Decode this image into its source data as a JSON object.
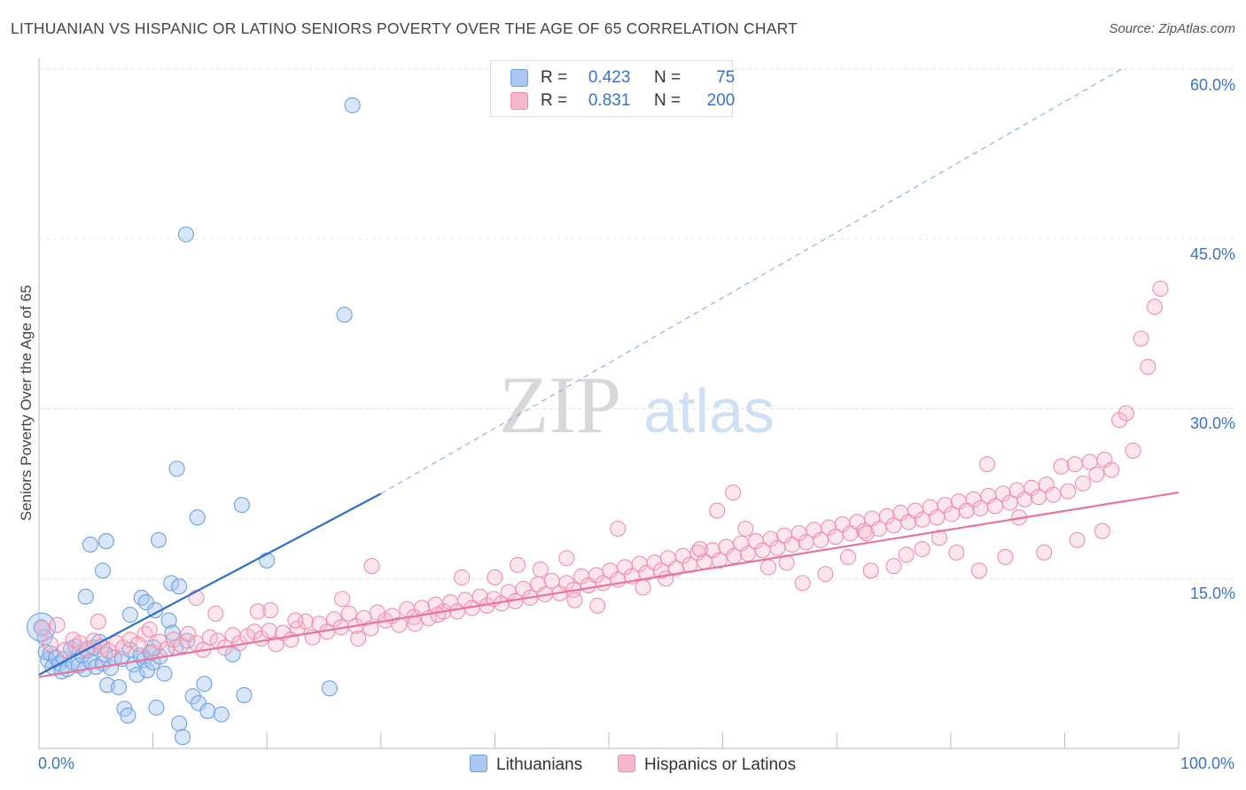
{
  "title": "LITHUANIAN VS HISPANIC OR LATINO SENIORS POVERTY OVER THE AGE OF 65 CORRELATION CHART",
  "source": "Source: ZipAtlas.com",
  "watermark": {
    "zip": "ZIP",
    "atlas": "atlas"
  },
  "legend": {
    "r_label": "R =",
    "n_label": "N =",
    "rows": [
      {
        "r": "0.423",
        "n": "75",
        "color": "#aac8ef"
      },
      {
        "r": "0.831",
        "n": "200",
        "color": "#f5b8cb"
      }
    ]
  },
  "bottom_legend": [
    {
      "label": "Lithuanians",
      "color": "#aac8ef"
    },
    {
      "label": "Hispanics or Latinos",
      "color": "#f5b8cb"
    }
  ],
  "chart_data": {
    "type": "scatter",
    "title": "LITHUANIAN VS HISPANIC OR LATINO SENIORS POVERTY OVER THE AGE OF 65 CORRELATION CHART",
    "xlabel": "",
    "ylabel": "Seniors Poverty Over the Age of 65",
    "xlim": [
      0,
      100
    ],
    "ylim": [
      0,
      60
    ],
    "x_tick_labels": [
      "0.0%",
      "100.0%"
    ],
    "y_tick_labels": [
      "15.0%",
      "30.0%",
      "45.0%",
      "60.0%"
    ],
    "y_ticks": [
      15,
      30,
      45,
      60
    ],
    "grid": true,
    "legend_position": "top-center",
    "series": [
      {
        "name": "Lithuanians",
        "color": "#6fa0df",
        "r": 0.423,
        "n": 75,
        "trend": {
          "x": [
            0,
            30
          ],
          "y": [
            6.5,
            22.5
          ],
          "extended_to": [
            95,
            60
          ]
        },
        "points": [
          [
            0.2,
            10.7
          ],
          [
            0.5,
            9.8
          ],
          [
            0.6,
            8.5
          ],
          [
            0.8,
            7.8
          ],
          [
            1.0,
            8.4
          ],
          [
            1.2,
            7.2
          ],
          [
            1.5,
            8.0
          ],
          [
            1.8,
            7.5
          ],
          [
            2.0,
            6.8
          ],
          [
            2.2,
            7.9
          ],
          [
            2.5,
            7.0
          ],
          [
            2.8,
            8.8
          ],
          [
            3.0,
            7.6
          ],
          [
            3.2,
            9.0
          ],
          [
            3.5,
            7.3
          ],
          [
            3.8,
            8.2
          ],
          [
            4.0,
            7.0
          ],
          [
            4.2,
            8.6
          ],
          [
            4.5,
            7.7
          ],
          [
            4.8,
            8.9
          ],
          [
            5.0,
            7.2
          ],
          [
            5.3,
            9.4
          ],
          [
            5.6,
            7.5
          ],
          [
            5.8,
            8.3
          ],
          [
            6.0,
            5.6
          ],
          [
            6.3,
            7.1
          ],
          [
            6.6,
            8.0
          ],
          [
            7.0,
            5.4
          ],
          [
            7.3,
            7.9
          ],
          [
            7.5,
            3.5
          ],
          [
            7.8,
            2.9
          ],
          [
            8.0,
            8.7
          ],
          [
            8.3,
            7.4
          ],
          [
            8.6,
            6.5
          ],
          [
            8.9,
            8.2
          ],
          [
            9.2,
            7.8
          ],
          [
            9.5,
            6.9
          ],
          [
            9.8,
            8.4
          ],
          [
            10.0,
            7.6
          ],
          [
            10.3,
            3.6
          ],
          [
            10.6,
            8.1
          ],
          [
            11.0,
            6.6
          ],
          [
            11.4,
            11.3
          ],
          [
            11.7,
            10.2
          ],
          [
            12.0,
            8.9
          ],
          [
            12.3,
            2.2
          ],
          [
            12.6,
            1.0
          ],
          [
            13.0,
            9.5
          ],
          [
            13.5,
            4.6
          ],
          [
            14.0,
            4.0
          ],
          [
            14.5,
            5.7
          ],
          [
            14.8,
            3.3
          ],
          [
            16.0,
            3.0
          ],
          [
            17.0,
            8.3
          ],
          [
            18.0,
            4.7
          ],
          [
            20.0,
            16.6
          ],
          [
            25.5,
            5.3
          ],
          [
            4.1,
            13.4
          ],
          [
            4.5,
            18.0
          ],
          [
            5.6,
            15.7
          ],
          [
            5.9,
            18.3
          ],
          [
            8.0,
            11.8
          ],
          [
            9.0,
            13.3
          ],
          [
            9.4,
            12.9
          ],
          [
            10.2,
            12.2
          ],
          [
            10.5,
            18.4
          ],
          [
            11.6,
            14.6
          ],
          [
            12.1,
            24.7
          ],
          [
            12.3,
            14.3
          ],
          [
            13.9,
            20.4
          ],
          [
            17.8,
            21.5
          ],
          [
            26.8,
            38.3
          ],
          [
            27.5,
            56.8
          ],
          [
            12.9,
            45.4
          ],
          [
            10.1,
            8.9
          ]
        ]
      },
      {
        "name": "Hispanics or Latinos",
        "color": "#ee8fae",
        "r": 0.831,
        "n": 200,
        "trend": {
          "x": [
            0,
            100
          ],
          "y": [
            6.3,
            22.6
          ]
        },
        "points": [
          [
            0.3,
            10.6
          ],
          [
            1.0,
            9.2
          ],
          [
            1.6,
            10.9
          ],
          [
            2.3,
            8.7
          ],
          [
            3.0,
            9.6
          ],
          [
            3.6,
            9.3
          ],
          [
            4.2,
            8.8
          ],
          [
            4.8,
            9.5
          ],
          [
            5.5,
            9.0
          ],
          [
            6.1,
            8.6
          ],
          [
            6.8,
            9.3
          ],
          [
            7.4,
            8.9
          ],
          [
            8.0,
            9.6
          ],
          [
            8.7,
            9.2
          ],
          [
            9.3,
            10.1
          ],
          [
            9.9,
            8.5
          ],
          [
            10.6,
            9.4
          ],
          [
            11.2,
            8.8
          ],
          [
            11.8,
            9.6
          ],
          [
            12.5,
            9.1
          ],
          [
            13.1,
            10.1
          ],
          [
            13.8,
            9.3
          ],
          [
            14.4,
            8.7
          ],
          [
            15.0,
            9.8
          ],
          [
            15.7,
            9.5
          ],
          [
            16.3,
            8.9
          ],
          [
            17.0,
            10.0
          ],
          [
            17.6,
            9.3
          ],
          [
            18.3,
            9.9
          ],
          [
            18.9,
            10.3
          ],
          [
            19.5,
            9.7
          ],
          [
            20.2,
            10.4
          ],
          [
            20.8,
            9.2
          ],
          [
            21.4,
            10.2
          ],
          [
            22.1,
            9.6
          ],
          [
            22.7,
            10.6
          ],
          [
            23.4,
            11.2
          ],
          [
            24.0,
            9.8
          ],
          [
            24.6,
            11.0
          ],
          [
            25.3,
            10.3
          ],
          [
            25.9,
            11.4
          ],
          [
            26.5,
            10.7
          ],
          [
            27.2,
            11.9
          ],
          [
            27.8,
            10.8
          ],
          [
            28.5,
            11.5
          ],
          [
            29.1,
            10.6
          ],
          [
            29.7,
            12.0
          ],
          [
            30.4,
            11.3
          ],
          [
            31.0,
            11.7
          ],
          [
            31.6,
            10.9
          ],
          [
            32.3,
            12.3
          ],
          [
            32.9,
            11.6
          ],
          [
            33.6,
            12.4
          ],
          [
            34.2,
            11.5
          ],
          [
            34.8,
            12.7
          ],
          [
            35.5,
            12.1
          ],
          [
            36.1,
            12.9
          ],
          [
            36.7,
            12.1
          ],
          [
            37.4,
            13.1
          ],
          [
            38.0,
            12.4
          ],
          [
            38.7,
            13.4
          ],
          [
            39.3,
            12.6
          ],
          [
            39.9,
            13.2
          ],
          [
            40.6,
            12.8
          ],
          [
            41.2,
            13.8
          ],
          [
            41.8,
            13.0
          ],
          [
            42.5,
            14.1
          ],
          [
            43.1,
            13.3
          ],
          [
            43.8,
            14.5
          ],
          [
            44.4,
            13.6
          ],
          [
            45.0,
            14.8
          ],
          [
            45.7,
            13.7
          ],
          [
            46.3,
            14.6
          ],
          [
            46.9,
            14.0
          ],
          [
            47.6,
            15.2
          ],
          [
            48.2,
            14.4
          ],
          [
            48.9,
            15.3
          ],
          [
            49.5,
            14.6
          ],
          [
            50.1,
            15.7
          ],
          [
            50.8,
            14.9
          ],
          [
            51.4,
            16.0
          ],
          [
            52.0,
            15.2
          ],
          [
            52.7,
            16.3
          ],
          [
            53.3,
            15.5
          ],
          [
            54.0,
            16.4
          ],
          [
            54.6,
            15.7
          ],
          [
            55.2,
            16.8
          ],
          [
            55.9,
            15.9
          ],
          [
            56.5,
            17.0
          ],
          [
            57.1,
            16.2
          ],
          [
            57.8,
            17.3
          ],
          [
            58.4,
            16.5
          ],
          [
            59.1,
            17.5
          ],
          [
            59.7,
            16.6
          ],
          [
            60.3,
            17.8
          ],
          [
            61.0,
            17.0
          ],
          [
            61.6,
            18.1
          ],
          [
            62.2,
            17.2
          ],
          [
            62.9,
            18.3
          ],
          [
            63.5,
            17.5
          ],
          [
            64.2,
            18.5
          ],
          [
            64.8,
            17.7
          ],
          [
            65.4,
            18.8
          ],
          [
            66.1,
            18.0
          ],
          [
            66.7,
            19.0
          ],
          [
            67.3,
            18.2
          ],
          [
            68.0,
            19.3
          ],
          [
            68.6,
            18.4
          ],
          [
            69.3,
            19.5
          ],
          [
            69.9,
            18.7
          ],
          [
            70.5,
            19.8
          ],
          [
            71.2,
            19.0
          ],
          [
            71.8,
            20.0
          ],
          [
            72.4,
            19.2
          ],
          [
            73.1,
            20.3
          ],
          [
            73.7,
            19.4
          ],
          [
            74.4,
            20.5
          ],
          [
            75.0,
            19.7
          ],
          [
            75.6,
            20.8
          ],
          [
            76.3,
            20.0
          ],
          [
            76.9,
            21.0
          ],
          [
            77.5,
            20.2
          ],
          [
            78.2,
            21.3
          ],
          [
            78.8,
            20.4
          ],
          [
            79.5,
            21.5
          ],
          [
            80.1,
            20.7
          ],
          [
            80.7,
            21.8
          ],
          [
            81.4,
            21.0
          ],
          [
            82.0,
            22.0
          ],
          [
            82.6,
            21.2
          ],
          [
            83.3,
            22.3
          ],
          [
            83.9,
            21.4
          ],
          [
            84.6,
            22.5
          ],
          [
            85.2,
            21.7
          ],
          [
            85.8,
            22.8
          ],
          [
            86.5,
            22.0
          ],
          [
            87.1,
            23.0
          ],
          [
            87.7,
            22.2
          ],
          [
            88.4,
            23.3
          ],
          [
            89.0,
            22.4
          ],
          [
            89.7,
            24.9
          ],
          [
            90.3,
            22.7
          ],
          [
            90.9,
            25.1
          ],
          [
            91.6,
            23.4
          ],
          [
            92.2,
            25.3
          ],
          [
            92.8,
            24.2
          ],
          [
            93.5,
            25.5
          ],
          [
            94.1,
            24.6
          ],
          [
            94.8,
            29.0
          ],
          [
            95.4,
            29.6
          ],
          [
            96.0,
            26.3
          ],
          [
            96.7,
            36.2
          ],
          [
            97.3,
            33.7
          ],
          [
            97.9,
            39.0
          ],
          [
            98.4,
            40.6
          ],
          [
            13.8,
            13.3
          ],
          [
            20.3,
            12.2
          ],
          [
            26.6,
            13.2
          ],
          [
            29.2,
            16.1
          ],
          [
            37.1,
            15.1
          ],
          [
            46.3,
            16.8
          ],
          [
            50.8,
            19.4
          ],
          [
            60.9,
            22.6
          ],
          [
            65.6,
            16.4
          ],
          [
            72.6,
            19.0
          ],
          [
            76.1,
            17.1
          ],
          [
            83.2,
            25.1
          ],
          [
            88.2,
            17.3
          ],
          [
            91.1,
            18.4
          ],
          [
            93.3,
            19.2
          ],
          [
            5.2,
            11.2
          ],
          [
            9.7,
            10.5
          ],
          [
            15.5,
            11.9
          ],
          [
            19.2,
            12.1
          ],
          [
            22.5,
            11.3
          ],
          [
            28.0,
            9.7
          ],
          [
            33.0,
            11.0
          ],
          [
            35.0,
            11.8
          ],
          [
            40.0,
            15.1
          ],
          [
            42.0,
            16.2
          ],
          [
            44.0,
            15.8
          ],
          [
            47.0,
            13.1
          ],
          [
            49.0,
            12.6
          ],
          [
            53.0,
            14.2
          ],
          [
            55.0,
            15.0
          ],
          [
            58.0,
            17.6
          ],
          [
            59.5,
            21.0
          ],
          [
            62.0,
            19.4
          ],
          [
            64.0,
            16.0
          ],
          [
            67.0,
            14.6
          ],
          [
            69.0,
            15.4
          ],
          [
            71.0,
            16.9
          ],
          [
            73.0,
            15.7
          ],
          [
            75.0,
            16.1
          ],
          [
            77.5,
            17.6
          ],
          [
            79.0,
            18.6
          ],
          [
            80.5,
            17.3
          ],
          [
            82.5,
            15.7
          ],
          [
            84.8,
            16.9
          ],
          [
            86.0,
            20.4
          ]
        ]
      }
    ]
  }
}
